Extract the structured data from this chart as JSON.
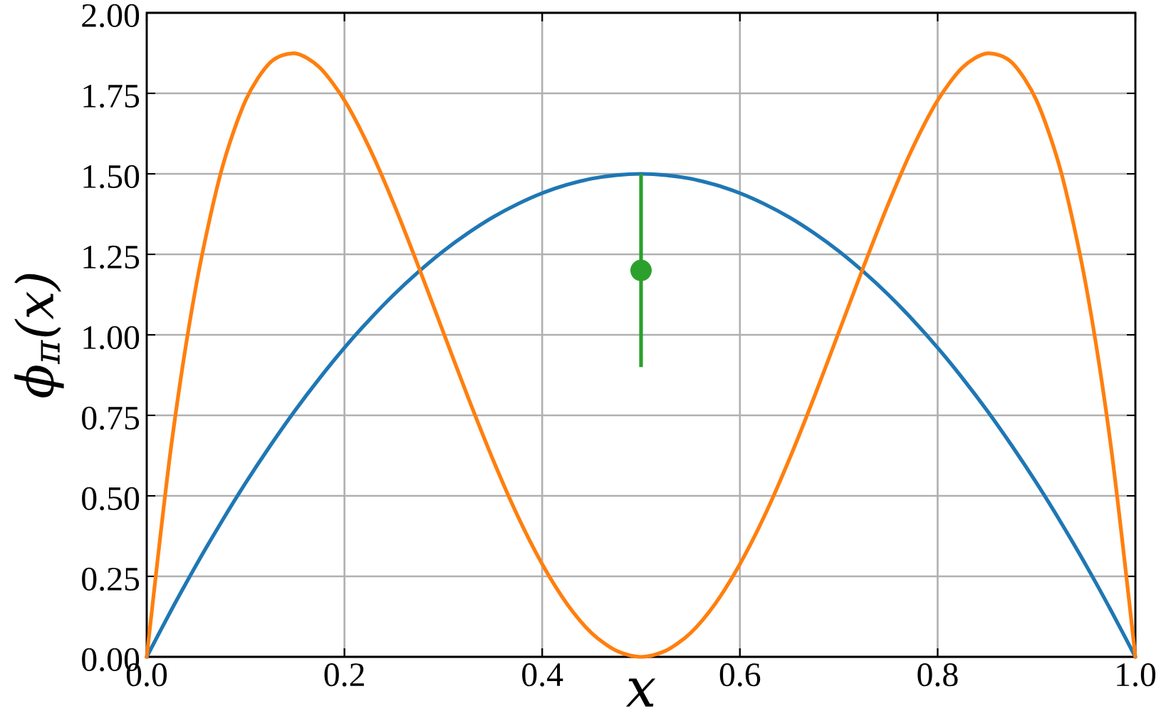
{
  "chart_data": {
    "type": "line",
    "xlabel": "x",
    "ylabel": "ϕ$_{π}$(x)",
    "x": [
      0,
      0.025,
      0.05,
      0.075,
      0.1,
      0.125,
      0.15,
      0.175,
      0.2,
      0.225,
      0.25,
      0.275,
      0.3,
      0.325,
      0.35,
      0.375,
      0.4,
      0.425,
      0.45,
      0.475,
      0.5,
      0.525,
      0.55,
      0.575,
      0.6,
      0.625,
      0.65,
      0.675,
      0.7,
      0.725,
      0.75,
      0.775,
      0.8,
      0.825,
      0.85,
      0.875,
      0.9,
      0.925,
      0.95,
      0.975,
      1
    ],
    "series": [
      {
        "color": "#1f77b4",
        "values": [
          0,
          0.146,
          0.285,
          0.416,
          0.54,
          0.656,
          0.765,
          0.866,
          0.96,
          1.046,
          1.125,
          1.196,
          1.26,
          1.316,
          1.365,
          1.406,
          1.44,
          1.466,
          1.485,
          1.496,
          1.5,
          1.496,
          1.485,
          1.466,
          1.44,
          1.406,
          1.365,
          1.316,
          1.26,
          1.196,
          1.125,
          1.046,
          0.96,
          0.866,
          0.765,
          0.656,
          0.54,
          0.416,
          0.285,
          0.146,
          0
        ]
      },
      {
        "color": "#ff7f0e",
        "values": [
          0,
          0.66,
          1.154,
          1.504,
          1.728,
          1.846,
          1.874,
          1.83,
          1.728,
          1.582,
          1.406,
          1.211,
          1.008,
          0.806,
          0.614,
          0.439,
          0.288,
          0.165,
          0.074,
          0.019,
          0,
          0.019,
          0.074,
          0.165,
          0.288,
          0.439,
          0.614,
          0.806,
          1.008,
          1.211,
          1.406,
          1.582,
          1.728,
          1.83,
          1.874,
          1.846,
          1.728,
          1.504,
          1.154,
          0.66,
          0
        ]
      },
      {
        "type": "scatter",
        "color": "#2ca02c",
        "x": [
          0.5
        ],
        "values": [
          1.2
        ],
        "errors": [
          0.3
        ],
        "marker": "circle"
      }
    ],
    "xlim": [
      0,
      1
    ],
    "ylim": [
      0,
      2
    ],
    "xticks": [
      {
        "value": 0,
        "label": "0.0"
      },
      {
        "value": 0.2,
        "label": "0.2"
      },
      {
        "value": 0.4,
        "label": "0.4"
      },
      {
        "value": 0.6,
        "label": "0.6"
      },
      {
        "value": 0.8,
        "label": "0.8"
      },
      {
        "value": 1,
        "label": "1.0"
      }
    ],
    "yticks": [
      {
        "value": 0,
        "label": "0.00"
      },
      {
        "value": 0.25,
        "label": "0.25"
      },
      {
        "value": 0.5,
        "label": "0.50"
      },
      {
        "value": 0.75,
        "label": "0.75"
      },
      {
        "value": 1,
        "label": "1.00"
      },
      {
        "value": 1.25,
        "label": "1.25"
      },
      {
        "value": 1.5,
        "label": "1.50"
      },
      {
        "value": 1.75,
        "label": "1.75"
      },
      {
        "value": 2,
        "label": "2.00"
      }
    ],
    "grid": true
  }
}
